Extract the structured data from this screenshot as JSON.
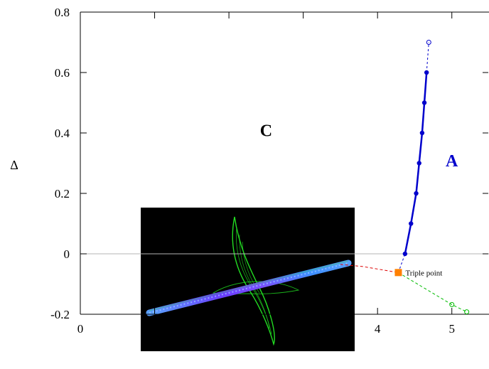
{
  "chart_data": {
    "type": "line",
    "ylabel": "Δ",
    "xlim": [
      0,
      5.5
    ],
    "ylim": [
      -0.2,
      0.8
    ],
    "x_ticks": [
      "0",
      "1",
      "2",
      "3",
      "4",
      "5"
    ],
    "y_ticks": [
      "-0.2",
      "0",
      "0.2",
      "0.4",
      "0.6",
      "0.8"
    ],
    "grid": false,
    "zero_line": true,
    "colors": {
      "A_line": "#0000cc",
      "C_line": "#dd0000",
      "B_line": "#00bb00",
      "triple_point": "#ff8000",
      "zero_line": "#b4b4b4",
      "inset_bg": "#000000"
    },
    "series": [
      {
        "key": "A_solid",
        "points": [
          [
            4.37,
            0.0
          ],
          [
            4.45,
            0.1
          ],
          [
            4.52,
            0.2
          ],
          [
            4.56,
            0.3
          ],
          [
            4.6,
            0.4
          ],
          [
            4.63,
            0.5
          ],
          [
            4.66,
            0.6
          ]
        ]
      },
      {
        "key": "A_dashed",
        "points": [
          [
            4.28,
            -0.062
          ],
          [
            4.37,
            0.0
          ]
        ]
      },
      {
        "key": "A_upper",
        "points": [
          [
            4.66,
            0.6
          ],
          [
            4.69,
            0.7
          ]
        ]
      },
      {
        "key": "C_dashed",
        "points": [
          [
            3.5,
            -0.035
          ],
          [
            3.8,
            -0.042
          ],
          [
            4.28,
            -0.062
          ]
        ]
      },
      {
        "key": "B_dashed",
        "points": [
          [
            4.28,
            -0.062
          ],
          [
            5.0,
            -0.168
          ],
          [
            5.2,
            -0.192
          ]
        ]
      }
    ],
    "triple_point": {
      "x": 4.28,
      "y": -0.062,
      "label": "Triple point"
    },
    "region_labels": [
      {
        "text": "C",
        "x": 2.5,
        "y": 0.39
      },
      {
        "text": "A",
        "x": 5.0,
        "y": 0.29
      }
    ]
  }
}
